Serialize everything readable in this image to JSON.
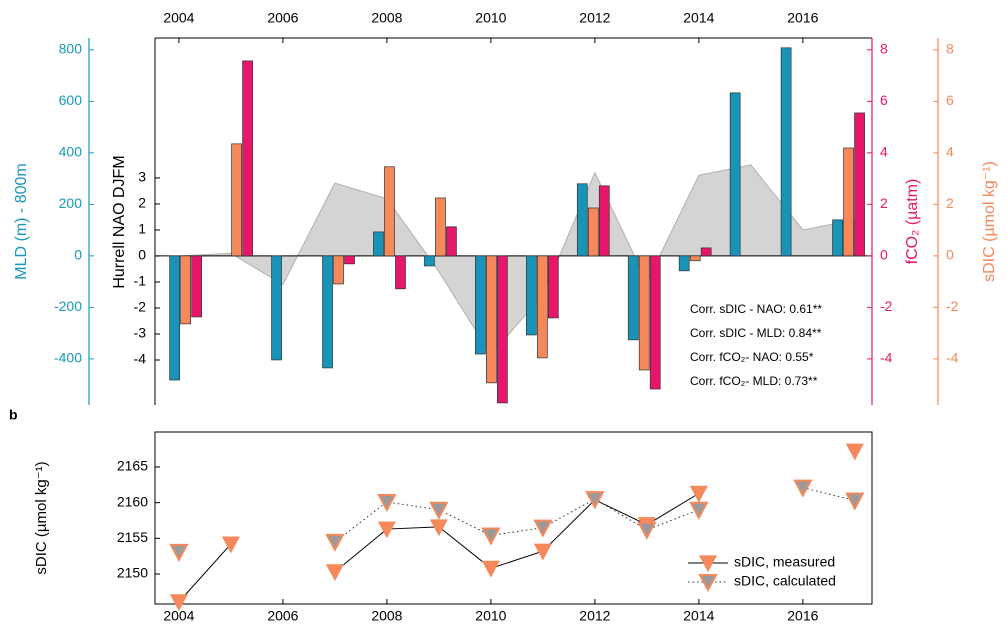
{
  "chart_data": [
    {
      "type": "bar",
      "xlim": [
        2003.54,
        2017.33
      ],
      "xticks": [
        2004,
        2006,
        2008,
        2010,
        2012,
        2014,
        2016
      ],
      "ylim": [
        -579,
        846
      ],
      "yticks": [
        -400,
        -200,
        0,
        200,
        400,
        600,
        800
      ],
      "ylabel": "MLD (m) - 800m",
      "ycolor": "#1a97ba",
      "y2lim": [
        -5.79,
        8.46
      ],
      "y2ticks": [
        -4,
        -2,
        0,
        2,
        4,
        6,
        8
      ],
      "y2label": "fCO₂ (µatm)",
      "y2color": "#e6176a",
      "y3lim": [
        -5.79,
        8.46
      ],
      "y3ticks": [
        -4,
        -2,
        0,
        2,
        4,
        6,
        8
      ],
      "y3label": "sDIC (µmol kg⁻¹)",
      "y3color": "#f5895b",
      "y4lim": [
        -5.73,
        8.38
      ],
      "y4ticks": [
        -4,
        -3,
        -2,
        -1,
        0,
        1,
        2,
        3
      ],
      "y4label": "Hurrell NAO DJFM",
      "y4color": "#000000",
      "x": [
        2004.12,
        2005.1,
        2006.08,
        2007.06,
        2008.04,
        2009.02,
        2010.0,
        2010.98,
        2011.96,
        2012.94,
        2013.92,
        2014.9,
        2015.88,
        2016.87
      ],
      "series": [
        {
          "kind": "area",
          "axis": "y4",
          "color": "#d4d4d4",
          "x": [
            2004,
            2005,
            2006,
            2007,
            2008,
            2009,
            2010,
            2011,
            2012,
            2013,
            2014,
            2015,
            2016,
            2017
          ],
          "values": [
            0.0,
            0.1,
            -1.1,
            2.8,
            2.2,
            -0.6,
            -3.8,
            -1.5,
            3.2,
            -1.0,
            3.1,
            3.5,
            1.0,
            1.4
          ]
        },
        {
          "kind": "bar",
          "axis": "y",
          "color": "#1a93b8",
          "values": [
            -482,
            null,
            -404,
            -435,
            93,
            -39,
            -381,
            -307,
            280,
            -326,
            -58,
            633,
            808,
            140
          ]
        },
        {
          "kind": "bar",
          "axis": "y3",
          "color": "#f5895b",
          "values": [
            -2.64,
            4.35,
            null,
            -1.09,
            3.46,
            2.25,
            -4.93,
            -3.96,
            1.86,
            -4.43,
            -0.19,
            null,
            null,
            4.19
          ]
        },
        {
          "kind": "bar",
          "axis": "y2",
          "color": "#e6176a",
          "values": [
            -2.37,
            7.57,
            null,
            -0.31,
            -1.28,
            1.13,
            -5.71,
            -2.41,
            2.72,
            -5.17,
            0.31,
            null,
            null,
            5.55
          ]
        }
      ],
      "annotations": [
        "Corr. sDIC - NAO: 0.61**",
        "Corr. sDIC - MLD: 0.84**",
        "Corr. fCO₂- NAO: 0.55*",
        "Corr. fCO₂- MLD: 0.73**"
      ]
    },
    {
      "type": "line",
      "panel_label": "b",
      "xlim": [
        2003.54,
        2017.33
      ],
      "xticks": [
        2004,
        2006,
        2008,
        2010,
        2012,
        2014,
        2016
      ],
      "ylim": [
        2145.8,
        2169.9
      ],
      "yticks": [
        2150,
        2155,
        2160,
        2165
      ],
      "ylabel": "sDIC (µmol kg⁻¹)",
      "x": [
        2004,
        2005,
        2006,
        2007,
        2008,
        2009,
        2010,
        2011,
        2012,
        2013,
        2014,
        2015,
        2016,
        2017
      ],
      "legend": "lower right",
      "series": [
        {
          "name": "sDIC, measured",
          "color": "#000000",
          "linestyle": "solid",
          "marker_color": "#f5895b",
          "values": [
            2146.1,
            2154.2,
            null,
            2150.3,
            2156.3,
            2156.6,
            2150.8,
            2153.2,
            2160.4,
            2156.9,
            2161.3,
            null,
            null,
            2167.2
          ]
        },
        {
          "name": "sDIC, calculated",
          "color": "#333333",
          "linestyle": "dotted",
          "marker_color": "#9a9a9a",
          "values": [
            2153.1,
            null,
            null,
            2154.5,
            2160.1,
            2159.0,
            2155.4,
            2156.5,
            2160.5,
            2156.2,
            2159.0,
            null,
            2162.1,
            2160.3
          ]
        }
      ]
    }
  ]
}
